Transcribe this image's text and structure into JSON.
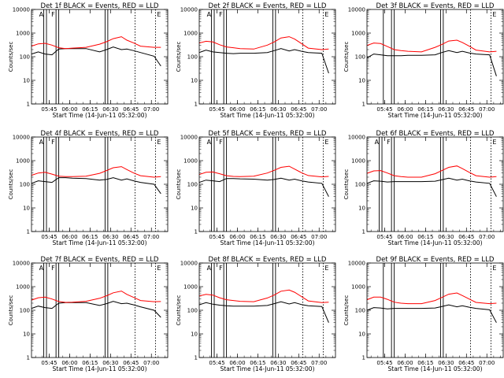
{
  "figure": {
    "xlabel": "Start Time (14-Jun-11 05:32:00)",
    "ylabel": "Counts/sec",
    "xtick_labels": [
      "05:45",
      "06:00",
      "06:15",
      "06:30",
      "06:45",
      "07:00"
    ],
    "ytick_labels": [
      "1",
      "10",
      "100",
      "1000",
      "10000"
    ],
    "colors": {
      "events": "#000000",
      "lld": "#ff0000",
      "marker": "#000000"
    }
  },
  "chart_data": [
    {
      "type": "line",
      "title": "Det 1f BLACK = Events, RED = LLD",
      "xlabel": "Start Time (14-Jun-11 05:32:00)",
      "ylabel": "Counts/sec",
      "x_unit": "minutes after 05:32",
      "xlim": [
        0,
        100
      ],
      "ylim": [
        1,
        10000
      ],
      "y_scale": "log",
      "x_ticks": [
        13,
        28,
        43,
        58,
        73,
        88
      ],
      "x": [
        0,
        5,
        10,
        15,
        20,
        25,
        30,
        40,
        50,
        55,
        60,
        66,
        70,
        75,
        80,
        90,
        95
      ],
      "series": [
        {
          "name": "BLACK = Events",
          "color": "#000000",
          "values": [
            130,
            160,
            130,
            120,
            210,
            220,
            220,
            220,
            160,
            200,
            260,
            200,
            210,
            180,
            150,
            105,
            40
          ]
        },
        {
          "name": "RED = LLD",
          "color": "#ff0000",
          "values": [
            280,
            350,
            370,
            310,
            240,
            220,
            230,
            250,
            340,
            430,
            580,
            700,
            500,
            380,
            280,
            250,
            250
          ]
        }
      ],
      "markers": {
        "solid": [
          {
            "x": 9,
            "label": "A"
          },
          {
            "x": 11
          },
          {
            "x": 18,
            "label": "F"
          },
          {
            "x": 20
          },
          {
            "x": 54
          },
          {
            "x": 56
          }
        ],
        "dotted": [
          {
            "x": 76
          },
          {
            "x": 91,
            "label": "E"
          }
        ]
      }
    },
    {
      "type": "line",
      "title": "Det 2f BLACK = Events, RED = LLD",
      "xlabel": "Start Time (14-Jun-11 05:32:00)",
      "ylabel": "Counts/sec",
      "x_unit": "minutes after 05:32",
      "xlim": [
        0,
        100
      ],
      "ylim": [
        1,
        10000
      ],
      "y_scale": "log",
      "x_ticks": [
        13,
        28,
        43,
        58,
        73,
        88
      ],
      "x": [
        0,
        5,
        10,
        15,
        20,
        25,
        30,
        40,
        50,
        55,
        60,
        66,
        70,
        75,
        80,
        90,
        95
      ],
      "series": [
        {
          "name": "BLACK = Events",
          "color": "#000000",
          "values": [
            150,
            190,
            160,
            150,
            140,
            135,
            140,
            140,
            150,
            180,
            220,
            175,
            200,
            170,
            150,
            140,
            20
          ]
        },
        {
          "name": "RED = LLD",
          "color": "#ff0000",
          "values": [
            380,
            450,
            420,
            320,
            260,
            240,
            220,
            210,
            310,
            420,
            620,
            700,
            560,
            360,
            230,
            200,
            210
          ]
        }
      ],
      "markers": {
        "solid": [
          {
            "x": 9,
            "label": "A"
          },
          {
            "x": 11
          },
          {
            "x": 18,
            "label": "F"
          },
          {
            "x": 20
          },
          {
            "x": 54
          },
          {
            "x": 56
          }
        ],
        "dotted": [
          {
            "x": 76
          },
          {
            "x": 91,
            "label": "E"
          }
        ]
      }
    },
    {
      "type": "line",
      "title": "Det 3f BLACK = Events, RED = LLD",
      "xlabel": "Start Time (14-Jun-11 05:32:00)",
      "ylabel": "Counts/sec",
      "x_unit": "minutes after 05:32",
      "xlim": [
        0,
        100
      ],
      "ylim": [
        1,
        10000
      ],
      "y_scale": "log",
      "x_ticks": [
        13,
        28,
        43,
        58,
        73,
        88
      ],
      "x": [
        0,
        5,
        10,
        15,
        20,
        25,
        30,
        40,
        50,
        55,
        60,
        66,
        70,
        75,
        80,
        90,
        95
      ],
      "series": [
        {
          "name": "BLACK = Events",
          "color": "#000000",
          "values": [
            90,
            130,
            120,
            110,
            110,
            110,
            115,
            115,
            120,
            150,
            180,
            150,
            170,
            145,
            130,
            120,
            15
          ]
        },
        {
          "name": "RED = LLD",
          "color": "#ff0000",
          "values": [
            300,
            380,
            360,
            270,
            200,
            180,
            170,
            160,
            250,
            330,
            460,
            500,
            400,
            280,
            190,
            160,
            170
          ]
        }
      ],
      "markers": {
        "solid": [
          {
            "x": 12
          },
          {
            "x": 18
          },
          {
            "x": 20
          },
          {
            "x": 54
          },
          {
            "x": 56
          }
        ],
        "dotted": [
          {
            "x": 76
          },
          {
            "x": 91,
            "label": "E"
          }
        ]
      }
    },
    {
      "type": "line",
      "title": "Det 4f BLACK = Events, RED = LLD",
      "xlabel": "Start Time (14-Jun-11 05:32:00)",
      "ylabel": "Counts/sec",
      "x_unit": "minutes after 05:32",
      "xlim": [
        0,
        100
      ],
      "ylim": [
        1,
        10000
      ],
      "y_scale": "log",
      "x_ticks": [
        13,
        28,
        43,
        58,
        73,
        88
      ],
      "x": [
        0,
        5,
        10,
        15,
        20,
        25,
        30,
        40,
        50,
        55,
        60,
        66,
        70,
        75,
        80,
        90,
        95
      ],
      "series": [
        {
          "name": "BLACK = Events",
          "color": "#000000",
          "values": [
            110,
            140,
            130,
            120,
            190,
            190,
            180,
            175,
            150,
            160,
            190,
            150,
            170,
            140,
            120,
            100,
            40
          ]
        },
        {
          "name": "RED = LLD",
          "color": "#ff0000",
          "values": [
            240,
            300,
            320,
            270,
            220,
            210,
            210,
            220,
            290,
            380,
            500,
            560,
            420,
            300,
            230,
            200,
            210
          ]
        }
      ],
      "markers": {
        "solid": [
          {
            "x": 9,
            "label": "A"
          },
          {
            "x": 11
          },
          {
            "x": 18,
            "label": "F"
          },
          {
            "x": 20
          },
          {
            "x": 54
          },
          {
            "x": 56
          }
        ],
        "dotted": [
          {
            "x": 76
          },
          {
            "x": 91,
            "label": "E"
          }
        ]
      }
    },
    {
      "type": "line",
      "title": "Det 5f BLACK = Events, RED = LLD",
      "xlabel": "Start Time (14-Jun-11 05:32:00)",
      "ylabel": "Counts/sec",
      "x_unit": "minutes after 05:32",
      "xlim": [
        0,
        100
      ],
      "ylim": [
        1,
        10000
      ],
      "y_scale": "log",
      "x_ticks": [
        13,
        28,
        43,
        58,
        73,
        88
      ],
      "x": [
        0,
        5,
        10,
        15,
        20,
        25,
        30,
        40,
        50,
        55,
        60,
        66,
        70,
        75,
        80,
        90,
        95
      ],
      "series": [
        {
          "name": "BLACK = Events",
          "color": "#000000",
          "values": [
            120,
            150,
            140,
            130,
            175,
            175,
            170,
            165,
            150,
            160,
            180,
            150,
            165,
            140,
            125,
            110,
            30
          ]
        },
        {
          "name": "RED = LLD",
          "color": "#ff0000",
          "values": [
            260,
            320,
            330,
            280,
            230,
            215,
            210,
            220,
            300,
            390,
            520,
            580,
            440,
            310,
            235,
            205,
            215
          ]
        }
      ],
      "markers": {
        "solid": [
          {
            "x": 9,
            "label": "A"
          },
          {
            "x": 11
          },
          {
            "x": 18,
            "label": "F"
          },
          {
            "x": 20
          },
          {
            "x": 54
          },
          {
            "x": 56
          }
        ],
        "dotted": [
          {
            "x": 76
          },
          {
            "x": 91,
            "label": "E"
          }
        ]
      }
    },
    {
      "type": "line",
      "title": "Det 6f BLACK = Events, RED = LLD",
      "xlabel": "Start Time (14-Jun-11 05:32:00)",
      "ylabel": "Counts/sec",
      "x_unit": "minutes after 05:32",
      "xlim": [
        0,
        100
      ],
      "ylim": [
        1,
        10000
      ],
      "y_scale": "log",
      "x_ticks": [
        13,
        28,
        43,
        58,
        73,
        88
      ],
      "x": [
        0,
        5,
        10,
        15,
        20,
        25,
        30,
        40,
        50,
        55,
        60,
        66,
        70,
        75,
        80,
        90,
        95
      ],
      "series": [
        {
          "name": "BLACK = Events",
          "color": "#000000",
          "values": [
            110,
            140,
            135,
            125,
            130,
            130,
            130,
            130,
            135,
            155,
            180,
            150,
            165,
            140,
            125,
            110,
            30
          ]
        },
        {
          "name": "RED = LLD",
          "color": "#ff0000",
          "values": [
            290,
            370,
            380,
            300,
            230,
            210,
            200,
            200,
            280,
            380,
            520,
            600,
            460,
            320,
            230,
            200,
            210
          ]
        }
      ],
      "markers": {
        "solid": [
          {
            "x": 9,
            "label": "A"
          },
          {
            "x": 11
          },
          {
            "x": 18,
            "label": "F"
          },
          {
            "x": 20
          },
          {
            "x": 54
          },
          {
            "x": 56
          }
        ],
        "dotted": [
          {
            "x": 76
          },
          {
            "x": 91,
            "label": "E"
          }
        ]
      }
    },
    {
      "type": "line",
      "title": "Det 7f BLACK = Events, RED = LLD",
      "xlabel": "Start Time (14-Jun-11 05:32:00)",
      "ylabel": "Counts/sec",
      "x_unit": "minutes after 05:32",
      "xlim": [
        0,
        100
      ],
      "ylim": [
        1,
        10000
      ],
      "y_scale": "log",
      "x_ticks": [
        13,
        28,
        43,
        58,
        73,
        88
      ],
      "x": [
        0,
        5,
        10,
        15,
        20,
        25,
        30,
        40,
        50,
        55,
        60,
        66,
        70,
        75,
        80,
        90,
        95
      ],
      "series": [
        {
          "name": "BLACK = Events",
          "color": "#000000",
          "values": [
            120,
            150,
            130,
            120,
            200,
            210,
            210,
            210,
            160,
            190,
            240,
            190,
            200,
            170,
            140,
            100,
            50
          ]
        },
        {
          "name": "RED = LLD",
          "color": "#ff0000",
          "values": [
            270,
            340,
            360,
            300,
            235,
            215,
            220,
            240,
            320,
            410,
            550,
            650,
            470,
            350,
            260,
            230,
            235
          ]
        }
      ],
      "markers": {
        "solid": [
          {
            "x": 9,
            "label": "A"
          },
          {
            "x": 11
          },
          {
            "x": 18,
            "label": "F"
          },
          {
            "x": 20
          },
          {
            "x": 54
          },
          {
            "x": 56
          }
        ],
        "dotted": [
          {
            "x": 76
          },
          {
            "x": 91,
            "label": "E"
          }
        ]
      }
    },
    {
      "type": "line",
      "title": "Det 8f BLACK = Events, RED = LLD",
      "xlabel": "Start Time (14-Jun-11 05:32:00)",
      "ylabel": "Counts/sec",
      "x_unit": "minutes after 05:32",
      "xlim": [
        0,
        100
      ],
      "ylim": [
        1,
        10000
      ],
      "y_scale": "log",
      "x_ticks": [
        13,
        28,
        43,
        58,
        73,
        88
      ],
      "x": [
        0,
        5,
        10,
        15,
        20,
        25,
        30,
        40,
        50,
        55,
        60,
        66,
        70,
        75,
        80,
        90,
        95
      ],
      "series": [
        {
          "name": "BLACK = Events",
          "color": "#000000",
          "values": [
            170,
            210,
            180,
            165,
            155,
            150,
            150,
            150,
            160,
            190,
            230,
            185,
            210,
            175,
            155,
            145,
            30
          ]
        },
        {
          "name": "RED = LLD",
          "color": "#ff0000",
          "values": [
            400,
            470,
            440,
            340,
            280,
            260,
            240,
            230,
            330,
            440,
            640,
            720,
            580,
            380,
            250,
            210,
            220
          ]
        }
      ],
      "markers": {
        "solid": [
          {
            "x": 9,
            "label": "A"
          },
          {
            "x": 11
          },
          {
            "x": 18,
            "label": "F"
          },
          {
            "x": 20
          },
          {
            "x": 54
          },
          {
            "x": 56
          }
        ],
        "dotted": [
          {
            "x": 76
          },
          {
            "x": 91,
            "label": "E"
          }
        ]
      }
    },
    {
      "type": "line",
      "title": "Det 9f BLACK = Events, RED = LLD",
      "xlabel": "Start Time (14-Jun-11 05:32:00)",
      "ylabel": "Counts/sec",
      "x_unit": "minutes after 05:32",
      "xlim": [
        0,
        100
      ],
      "ylim": [
        1,
        10000
      ],
      "y_scale": "log",
      "x_ticks": [
        13,
        28,
        43,
        58,
        73,
        88
      ],
      "x": [
        0,
        5,
        10,
        15,
        20,
        25,
        30,
        40,
        50,
        55,
        60,
        66,
        70,
        75,
        80,
        90,
        95
      ],
      "series": [
        {
          "name": "BLACK = Events",
          "color": "#000000",
          "values": [
            100,
            130,
            125,
            115,
            120,
            120,
            120,
            120,
            125,
            145,
            170,
            140,
            155,
            135,
            120,
            105,
            30
          ]
        },
        {
          "name": "RED = LLD",
          "color": "#ff0000",
          "values": [
            280,
            360,
            360,
            290,
            220,
            200,
            190,
            190,
            260,
            350,
            480,
            540,
            420,
            300,
            215,
            190,
            200
          ]
        }
      ],
      "markers": {
        "solid": [
          {
            "x": 12
          },
          {
            "x": 18
          },
          {
            "x": 20
          },
          {
            "x": 54
          },
          {
            "x": 56
          }
        ],
        "dotted": [
          {
            "x": 76
          },
          {
            "x": 91,
            "label": "E"
          }
        ]
      }
    }
  ]
}
